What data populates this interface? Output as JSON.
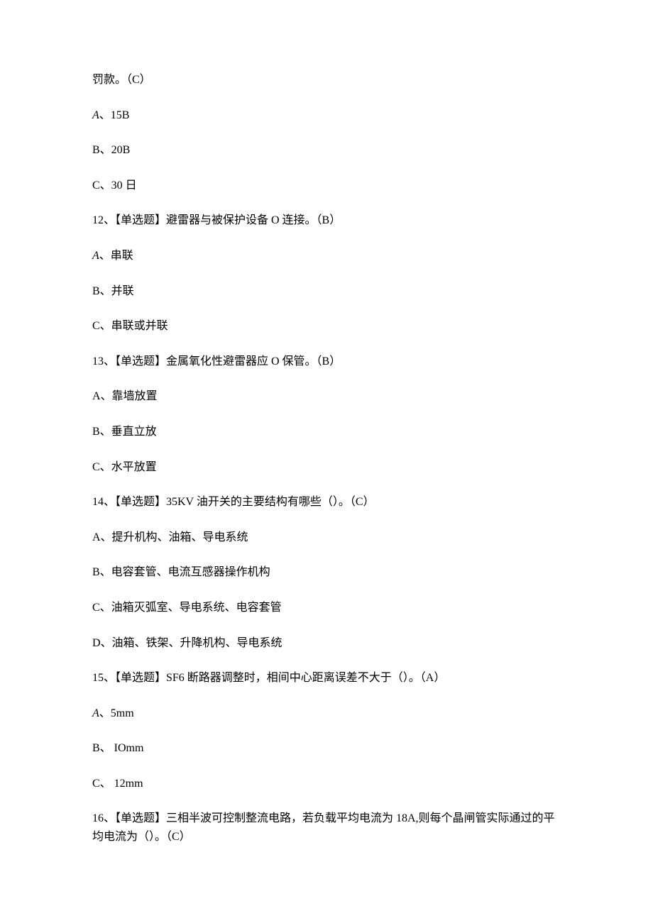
{
  "q11_continuation": {
    "text": "罚款。（C）",
    "options": {
      "a": "A、15B",
      "b": "B、20B",
      "c": "C、30 日"
    }
  },
  "q12": {
    "text": "12、【单选题】避雷器与被保护设备 O 连接。（B）",
    "options": {
      "a": "A、串联",
      "b": "B、并联",
      "c": "C、串联或并联"
    }
  },
  "q13": {
    "text": "13、【单选题】金属氧化性避雷器应 O 保管。（B）",
    "options": {
      "a": "A、靠墙放置",
      "b": "B、垂直立放",
      "c": "C、水平放置"
    }
  },
  "q14": {
    "text": "14、【单选题】35KV 油开关的主要结构有哪些（）。（C）",
    "options": {
      "a": "A、提升机构、油箱、导电系统",
      "b": "B、电容套管、电流互感器操作机构",
      "c": "C、油箱灭弧室、导电系统、电容套管",
      "d": "D、油箱、铁架、升降机构、导电系统"
    }
  },
  "q15": {
    "text": "15、【单选题】SF6 断路器调整时，相间中心距离误差不大于（）。（A）",
    "options": {
      "a": "A、5mm",
      "b": "B、 IOmm",
      "c": "C、 12mm"
    }
  },
  "q16": {
    "text": "16、【单选题】三相半波可控制整流电路，若负载平均电流为 18A,则每个晶闸管实际通过的平均电流为（）。（C）"
  }
}
